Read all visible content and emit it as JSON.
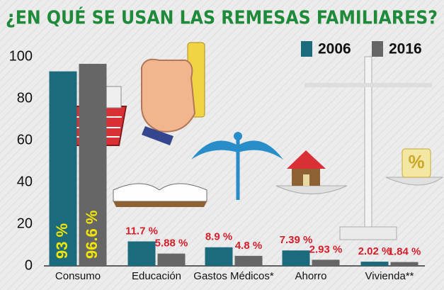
{
  "chart_data": {
    "type": "bar",
    "title": "¿EN QUÉ SE USAN LAS REMESAS FAMILIARES?",
    "categories": [
      "Consumo",
      "Educación",
      "Gastos Médicos*",
      "Ahorro",
      "Vivienda**"
    ],
    "series": [
      {
        "name": "2006",
        "color": "#1c6b7c",
        "values": [
          93,
          11.7,
          8.9,
          7.39,
          2.02
        ],
        "value_labels": [
          "93 %",
          "11.7 %",
          "8.9 %",
          "7.39 %",
          "2.02 %"
        ]
      },
      {
        "name": "2016",
        "color": "#666666",
        "values": [
          96.6,
          5.88,
          4.8,
          2.93,
          1.84
        ],
        "value_labels": [
          "96.6 %",
          "5.88 %",
          "4.8 %",
          "2.93 %",
          "1.84 %"
        ]
      }
    ],
    "ylim": [
      0,
      100
    ],
    "yticks": [
      0,
      20,
      40,
      60,
      80,
      100
    ]
  }
}
